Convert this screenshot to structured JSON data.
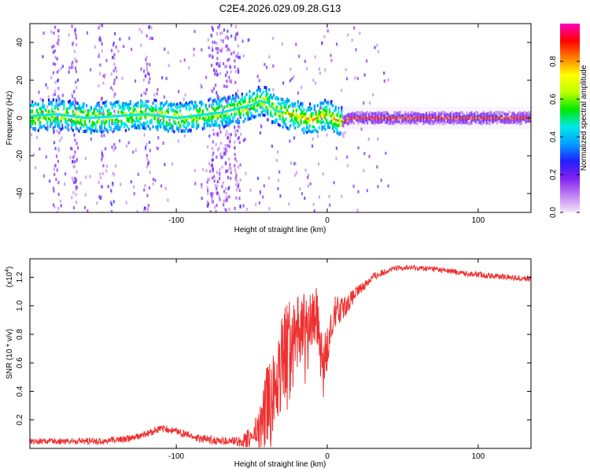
{
  "title": "C2E4.2026.029.09.28.G13",
  "chart_data": [
    {
      "type": "heatmap",
      "name": "spectrogram",
      "xlabel": "Height of straight line (km)",
      "ylabel": "Frequency (Hz)",
      "xlim": [
        -197,
        135
      ],
      "ylim": [
        -50,
        50
      ],
      "x_ticks": [
        -100,
        0,
        100
      ],
      "x_tick_labels": [
        "-100",
        "0",
        "100"
      ],
      "y_ticks": [
        -40,
        -20,
        0,
        20,
        40
      ],
      "y_tick_labels": [
        "-40",
        "-20",
        "0",
        "20",
        "40"
      ],
      "colorbar": {
        "label": "Normalized spectral amplitude",
        "range": [
          0,
          1
        ],
        "ticks": [
          0.0,
          0.2,
          0.4,
          0.6,
          0.8
        ],
        "tick_labels": [
          "0.0",
          "0.2",
          "0.4",
          "0.6",
          "0.8"
        ],
        "colors": [
          "#f4e8f8",
          "#c080f0",
          "#8020f0",
          "#2020ff",
          "#00a0ff",
          "#00e8e8",
          "#00e800",
          "#c0ff00",
          "#ffff00",
          "#ff8000",
          "#ff0000",
          "#ff00c0"
        ]
      },
      "ridge": {
        "x": [
          -197,
          -180,
          -160,
          -140,
          -120,
          -100,
          -90,
          -80,
          -70,
          -60,
          -50,
          -45,
          -40,
          -35,
          -30,
          -25,
          -20,
          -15,
          -10,
          -5,
          0,
          5,
          10,
          15,
          20,
          40,
          60,
          80,
          100,
          120,
          135
        ],
        "y": [
          1,
          2,
          0,
          1,
          2,
          0,
          1,
          2,
          3,
          5,
          7,
          9,
          8,
          4,
          3,
          2,
          1,
          0,
          -1,
          1,
          2,
          -1,
          -2,
          0,
          0,
          0,
          0,
          0,
          0,
          0,
          0
        ]
      }
    },
    {
      "type": "line",
      "name": "snr",
      "xlabel": "Height of straight line (km)",
      "ylabel": "SNR (10 * v/v)",
      "y_multiplier": "(x10",
      "y_multiplier_exp": "4",
      "y_multiplier_close": ")",
      "xlim": [
        -197,
        135
      ],
      "ylim": [
        0,
        1.33
      ],
      "x_ticks": [
        -100,
        0,
        100
      ],
      "x_tick_labels": [
        "-100",
        "0",
        "100"
      ],
      "y_ticks": [
        0.2,
        0.4,
        0.6,
        0.8,
        1.0,
        1.2
      ],
      "y_tick_labels": [
        "0.2",
        "0.4",
        "0.6",
        "0.8",
        "1.0",
        "1.2"
      ],
      "color": "#ee3030",
      "trend": {
        "x": [
          -197,
          -150,
          -130,
          -120,
          -110,
          -100,
          -85,
          -70,
          -55,
          -45,
          -38,
          -32,
          -28,
          -22,
          -15,
          -8,
          -2,
          5,
          12,
          20,
          30,
          40,
          50,
          70,
          90,
          110,
          135
        ],
        "y": [
          0.05,
          0.05,
          0.07,
          0.1,
          0.14,
          0.12,
          0.07,
          0.05,
          0.05,
          0.12,
          0.35,
          0.55,
          0.7,
          0.75,
          0.85,
          0.95,
          0.6,
          0.95,
          1.0,
          1.1,
          1.2,
          1.25,
          1.27,
          1.26,
          1.23,
          1.21,
          1.19
        ]
      },
      "noise": {
        "x": [
          -197,
          -60,
          -50,
          -40,
          -30,
          -20,
          -10,
          0,
          10,
          20,
          40,
          60,
          135
        ],
        "amp": [
          0.02,
          0.03,
          0.08,
          0.3,
          0.35,
          0.3,
          0.2,
          0.15,
          0.08,
          0.04,
          0.02,
          0.02,
          0.02
        ]
      }
    }
  ]
}
